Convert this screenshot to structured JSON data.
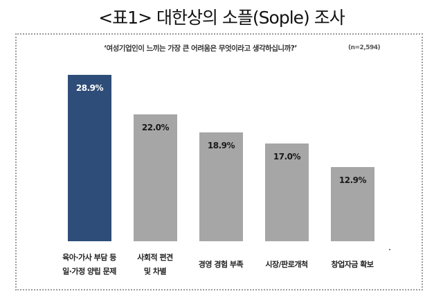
{
  "header": {
    "title": "<표1> 대한상의 소플(Sople) 조사",
    "question": "‘여성기업인이 느끼는 가장 큰 어려움은 무엇이라고 생각하십니까?’",
    "sample_size": "(n=2,594)"
  },
  "colors": {
    "highlight": "#2e4d78",
    "default": "#a6a6a6",
    "highlight_text": "#ffffff",
    "default_text": "#1a1a1a"
  },
  "chart_data": {
    "type": "bar",
    "title": "<표1> 대한상의 소플(Sople) 조사",
    "subtitle": "‘여성기업인이 느끼는 가장 큰 어려움은 무엇이라고 생각하십니까?’ (n=2,594)",
    "xlabel": "",
    "ylabel": "",
    "categories": [
      "육아·가사 부담 등 일·가정 양립 문제",
      "사회적 편견 및 차별",
      "경영 경험 부족",
      "시장/판로개척",
      "창업자금 확보"
    ],
    "values": [
      28.9,
      22.0,
      18.9,
      17.0,
      12.9
    ],
    "unit": "%",
    "grid": false,
    "legend": null,
    "bars": [
      {
        "label_line1": "육아·가사 부담 등",
        "label_line2": "일·가정 양립 문제",
        "value": 28.9,
        "value_label": "28.9%",
        "highlight": true
      },
      {
        "label_line1": "사회적 편견",
        "label_line2": "및 차별",
        "value": 22.0,
        "value_label": "22.0%",
        "highlight": false
      },
      {
        "label_line1": "경영 경험 부족",
        "label_line2": "",
        "value": 18.9,
        "value_label": "18.9%",
        "highlight": false
      },
      {
        "label_line1": "시장/판로개척",
        "label_line2": "",
        "value": 17.0,
        "value_label": "17.0%",
        "highlight": false
      },
      {
        "label_line1": "창업자금 확보",
        "label_line2": "",
        "value": 12.9,
        "value_label": "12.9%",
        "highlight": false
      }
    ]
  }
}
